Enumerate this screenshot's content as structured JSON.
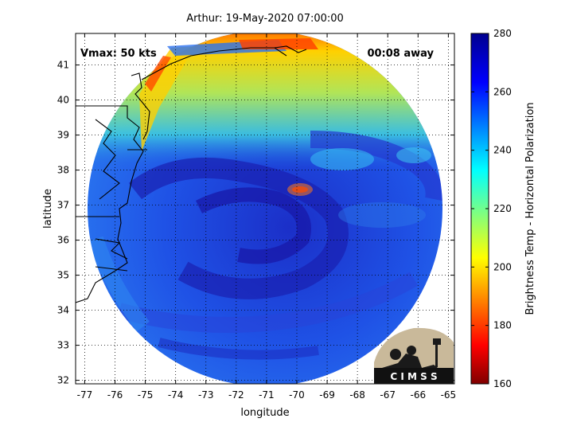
{
  "chart_data": {
    "type": "heatmap",
    "title": "Arthur: 19-May-2020 07:00:00",
    "xlabel": "longitude",
    "ylabel": "latitude",
    "xlim": [
      -77.3,
      -64.8
    ],
    "ylim": [
      31.9,
      41.9
    ],
    "xticks": [
      -77,
      -76,
      -75,
      -74,
      -73,
      -72,
      -71,
      -70,
      -69,
      -68,
      -67,
      -66,
      -65
    ],
    "yticks": [
      32,
      33,
      34,
      35,
      36,
      37,
      38,
      39,
      40,
      41
    ],
    "grid": true,
    "colorbar": {
      "label": "Brightness Temp - Horizontal Polarization",
      "range": [
        160,
        280
      ],
      "ticks": [
        160,
        180,
        200,
        220,
        240,
        260,
        280
      ],
      "colormap": "jet"
    },
    "annotations": {
      "vmax": "Vmax: 50 kts",
      "time_offset": "00:08 away"
    },
    "storm_center": {
      "lon": -70.0,
      "lat": 37.4
    },
    "logo_text": "C I M S S"
  },
  "colors": {
    "background": "#1a3bd8",
    "land_outline": "#000000",
    "warm_band": "#bfe83a",
    "hot_spot": "#c0191a"
  }
}
